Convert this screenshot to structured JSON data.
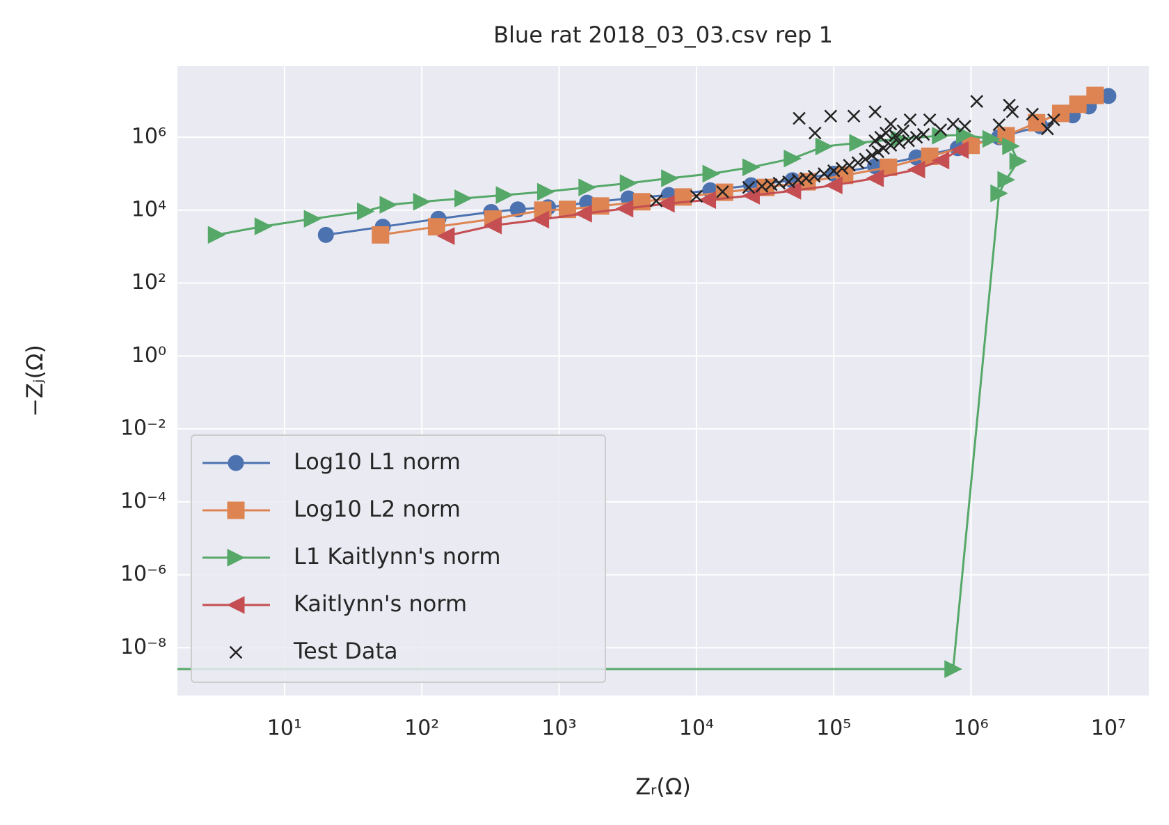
{
  "chart_data": {
    "type": "line",
    "title": "Blue rat 2018_03_03.csv rep 1",
    "x_label": "Zᵣ(Ω)",
    "y_label": "−Zⱼ(Ω)",
    "log_x": true,
    "log_y": true,
    "grid": true,
    "legend": "lower left",
    "xlim": [
      1.66,
      19700000
    ],
    "ylim": [
      4.9e-10,
      89000000
    ],
    "xticks": [
      {
        "value": 10,
        "label": "10¹"
      },
      {
        "value": 100,
        "label": "10²"
      },
      {
        "value": 1000,
        "label": "10³"
      },
      {
        "value": 10000,
        "label": "10⁴"
      },
      {
        "value": 100000,
        "label": "10⁵"
      },
      {
        "value": 1000000,
        "label": "10⁶"
      },
      {
        "value": 10000000,
        "label": "10⁷"
      }
    ],
    "yticks": [
      {
        "value": 1e-08,
        "label": "10⁻⁸"
      },
      {
        "value": 1e-06,
        "label": "10⁻⁶"
      },
      {
        "value": 0.0001,
        "label": "10⁻⁴"
      },
      {
        "value": 0.01,
        "label": "10⁻²"
      },
      {
        "value": 1,
        "label": "10⁰"
      },
      {
        "value": 100,
        "label": "10²"
      },
      {
        "value": 10000,
        "label": "10⁴"
      },
      {
        "value": 1000000,
        "label": "10⁶"
      }
    ],
    "series": [
      {
        "name": "Log10 L1 norm",
        "color": "#4c72b0",
        "marker": "o",
        "line": true,
        "x": [
          20,
          52,
          132,
          320,
          500,
          830,
          1600,
          3200,
          6300,
          12600,
          25000,
          50000,
          100000,
          200000,
          400000,
          800000,
          1600000,
          3200000,
          5500000,
          7200000,
          10000000
        ],
        "values": [
          2100,
          3500,
          5800,
          8900,
          10500,
          12000,
          16000,
          21000,
          26000,
          35000,
          48000,
          66000,
          100000,
          160000,
          280000,
          500000,
          1000000,
          2000000,
          4000000,
          7000000,
          13500000
        ]
      },
      {
        "name": "Log10 L2 norm",
        "color": "#dd8452",
        "marker": "s",
        "line": true,
        "x": [
          50,
          128,
          330,
          760,
          1150,
          2000,
          4000,
          8000,
          16000,
          32000,
          64000,
          120000,
          250000,
          500000,
          1000000,
          1800000,
          3000000,
          4500000,
          6000000,
          8000000
        ],
        "values": [
          2100,
          3500,
          5700,
          10000,
          10500,
          13000,
          17000,
          23000,
          31000,
          42000,
          60000,
          90000,
          150000,
          300000,
          600000,
          1100000,
          2500000,
          4500000,
          8000000,
          14000000
        ]
      },
      {
        "name": "L1 Kaitlynn's norm",
        "color": "#55a868",
        "marker": ">",
        "line": true,
        "x": [
          3.2,
          7,
          16,
          39,
          57,
          100,
          200,
          400,
          800,
          1600,
          3200,
          6400,
          12800,
          25000,
          50000,
          85000,
          150000,
          300000,
          600000,
          900000,
          1400000,
          1950000,
          2200000,
          1800000,
          1600000,
          740000,
          1
        ],
        "values": [
          2100,
          3600,
          5800,
          9300,
          14000,
          17000,
          21000,
          26000,
          32000,
          42000,
          55000,
          75000,
          100000,
          150000,
          260000,
          560000,
          700000,
          900000,
          1100000,
          1150000,
          900000,
          570000,
          220000,
          68000,
          29000,
          2.6e-09,
          2.6e-09
        ]
      },
      {
        "name": "Kaitlynn's norm",
        "color": "#c44e52",
        "marker": "<",
        "line": true,
        "x": [
          150,
          330,
          730,
          1500,
          3000,
          6000,
          12000,
          25000,
          50000,
          100000,
          200000,
          400000,
          600000,
          830000
        ],
        "values": [
          1950,
          3800,
          5500,
          8000,
          11000,
          15000,
          19000,
          25000,
          34000,
          48000,
          75000,
          130000,
          230000,
          450000
        ]
      },
      {
        "name": "Test Data",
        "color": "#222222",
        "marker": "x",
        "line": false,
        "x": [
          5100,
          10000,
          15500,
          24000,
          30000,
          35000,
          40000,
          47000,
          55000,
          63000,
          72000,
          85000,
          100000,
          115000,
          130000,
          150000,
          170000,
          190000,
          210000,
          230000,
          260000,
          300000,
          350000,
          400000,
          450000,
          200000,
          220000,
          240000,
          280000,
          320000,
          600000,
          900000,
          1600000,
          2000000,
          56000,
          73000,
          95000,
          140000,
          200000,
          260000,
          360000,
          500000,
          740000,
          1100000,
          1900000,
          2800000,
          3600000,
          4000000
        ],
        "values": [
          18000,
          24000,
          32000,
          42000,
          45000,
          50000,
          55000,
          60000,
          68000,
          75000,
          85000,
          100000,
          120000,
          140000,
          170000,
          200000,
          250000,
          320000,
          400000,
          500000,
          600000,
          700000,
          800000,
          1000000,
          1200000,
          800000,
          1000000,
          1300000,
          1100000,
          1500000,
          1600000,
          2000000,
          2200000,
          5000000,
          3300000,
          1300000,
          3800000,
          3800000,
          5000000,
          2300000,
          3000000,
          3000000,
          2300000,
          9600000,
          7600000,
          4300000,
          1700000,
          3000000
        ]
      }
    ]
  }
}
